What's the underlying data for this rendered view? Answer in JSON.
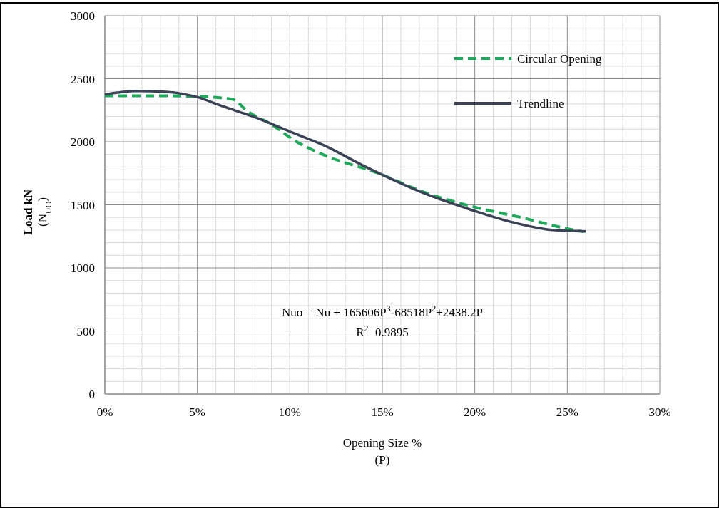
{
  "chart_data": {
    "type": "line",
    "xlabel": "Opening Size %\n(P)",
    "ylabel": "Load kN\n(N$_{UO}$)",
    "xlim": [
      0,
      30
    ],
    "xticks": [
      {
        "value": 0,
        "label": "0%"
      },
      {
        "value": 5,
        "label": "5%"
      },
      {
        "value": 10,
        "label": "10%"
      },
      {
        "value": 15,
        "label": "15%"
      },
      {
        "value": 20,
        "label": "20%"
      },
      {
        "value": 25,
        "label": "25%"
      },
      {
        "value": 30,
        "label": "30%"
      }
    ],
    "ylim": [
      0,
      3000
    ],
    "yticks": [
      0,
      500,
      1000,
      1500,
      2000,
      2500,
      3000
    ],
    "grid": true,
    "legend": "top right",
    "marker": "none",
    "series": [
      {
        "name": "Circular Opening",
        "color": "#1eaa5a",
        "line_style": "dashed",
        "x": [
          0,
          2.9,
          4.9,
          6.9,
          7.7,
          9.0,
          10.3,
          11.9,
          14.8,
          17.3,
          19.9,
          22.5,
          24.9,
          25.9
        ],
        "values": [
          2365,
          2365,
          2360,
          2337,
          2243,
          2138,
          2006,
          1892,
          1750,
          1598,
          1485,
          1400,
          1314,
          1286
        ]
      },
      {
        "name": "Trendline",
        "color": "#3a4356",
        "line_style": "solid",
        "x": [
          0,
          1.7,
          3.3,
          4.9,
          6.4,
          8.1,
          10.0,
          11.9,
          13.9,
          15.8,
          17.3,
          19.9,
          21.8,
          24.2,
          26.0
        ],
        "values": [
          2375,
          2403,
          2395,
          2358,
          2280,
          2195,
          2081,
          1968,
          1816,
          1684,
          1589,
          1456,
          1371,
          1301,
          1290
        ]
      }
    ],
    "annotations": [
      "Nuo = Nu + 165606P$^{3}$-68518P$^{2}$+2438.2P",
      "R$^{2}$=0.9895"
    ]
  }
}
